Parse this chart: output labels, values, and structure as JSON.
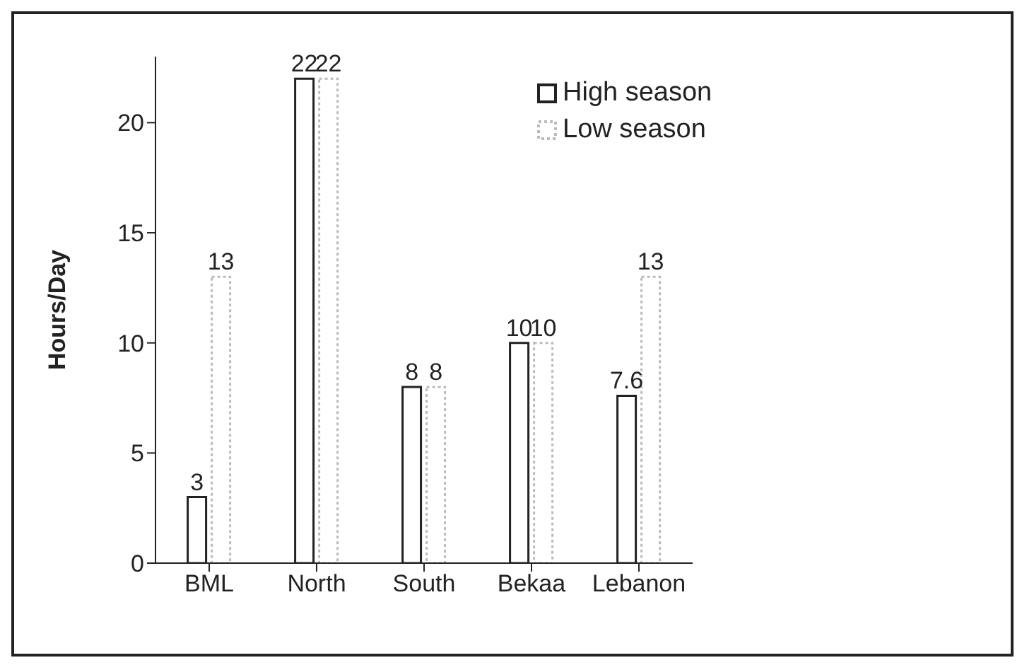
{
  "chart_data": {
    "type": "bar",
    "ylabel": "Hours/Day",
    "categories": [
      "BML",
      "North",
      "South",
      "Bekaa",
      "Lebanon"
    ],
    "series": [
      {
        "name": "High season",
        "color": "#222222",
        "values": [
          3,
          22,
          8,
          10,
          7.6
        ]
      },
      {
        "name": "Low season",
        "color": "#bbbbbb",
        "values": [
          13,
          22,
          8,
          10,
          13
        ]
      }
    ],
    "ylim": [
      0,
      23
    ],
    "yticks": [
      0,
      5,
      10,
      15,
      20
    ],
    "data_labels": true,
    "legend": "top",
    "grid": false
  }
}
